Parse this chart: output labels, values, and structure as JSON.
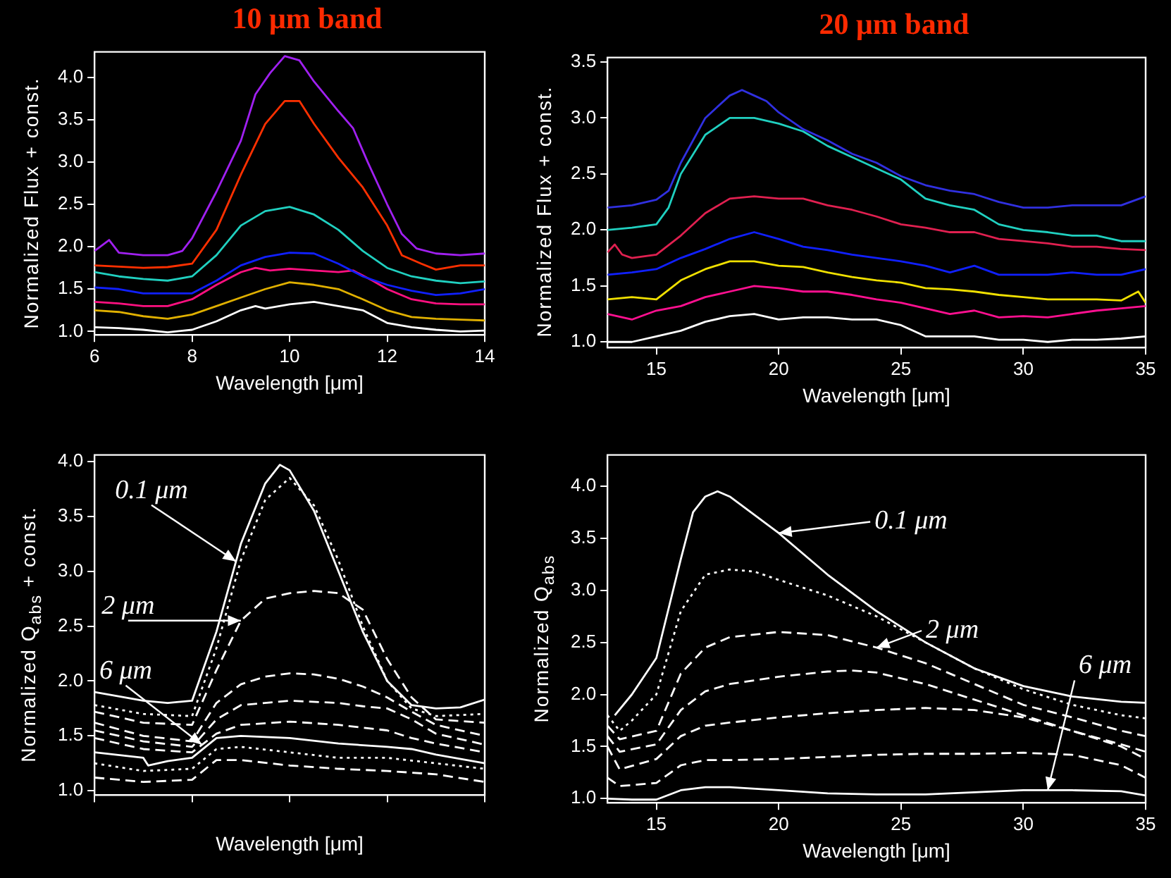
{
  "chart_data": [
    {
      "type": "line",
      "title": "10 μm band",
      "xlabel": "Wavelength [μm]",
      "ylabel": "Normalized Flux + const.",
      "xlim": [
        6,
        14
      ],
      "ylim": [
        0.96,
        4.3
      ],
      "xticks": [
        6,
        8,
        10,
        12,
        14
      ],
      "yticks": [
        {
          "value": 1,
          "label": "1.0"
        },
        1.5,
        {
          "value": 2,
          "label": "2.0"
        },
        2.5,
        {
          "value": 3,
          "label": "3.0"
        },
        3.5,
        {
          "value": 4,
          "label": "4.0"
        }
      ],
      "grid": false,
      "legend": false,
      "marker": "none",
      "series": [
        {
          "color": "#a020f0",
          "x": [
            6,
            6.3,
            6.5,
            7,
            7.5,
            7.8,
            8,
            8.5,
            9,
            9.3,
            9.6,
            9.9,
            10.2,
            10.5,
            11,
            11.3,
            11.6,
            12,
            12.3,
            12.6,
            13,
            13.5,
            14
          ],
          "values": [
            1.95,
            2.08,
            1.93,
            1.9,
            1.9,
            1.95,
            2.1,
            2.65,
            3.25,
            3.8,
            4.05,
            4.25,
            4.2,
            3.95,
            3.6,
            3.4,
            3.0,
            2.5,
            2.15,
            1.98,
            1.92,
            1.9,
            1.92
          ]
        },
        {
          "color": "#ff3000",
          "x": [
            6,
            7,
            7.5,
            8,
            8.5,
            9,
            9.5,
            9.9,
            10.2,
            10.5,
            11,
            11.5,
            12,
            12.3,
            12.7,
            13,
            13.5,
            14
          ],
          "values": [
            1.78,
            1.75,
            1.76,
            1.8,
            2.2,
            2.85,
            3.45,
            3.72,
            3.72,
            3.45,
            3.05,
            2.7,
            2.25,
            1.9,
            1.8,
            1.73,
            1.78,
            1.78
          ]
        },
        {
          "color": "#20d0c0",
          "x": [
            6,
            6.5,
            7,
            7.5,
            8,
            8.5,
            9,
            9.5,
            10,
            10.5,
            11,
            11.5,
            12,
            12.5,
            13,
            13.5,
            14
          ],
          "values": [
            1.7,
            1.65,
            1.62,
            1.6,
            1.65,
            1.9,
            2.25,
            2.42,
            2.47,
            2.38,
            2.2,
            1.95,
            1.75,
            1.65,
            1.6,
            1.57,
            1.59
          ]
        },
        {
          "color": "#1020ff",
          "x": [
            6,
            6.5,
            7,
            7.5,
            8,
            8.5,
            9,
            9.5,
            10,
            10.5,
            11,
            11.5,
            12,
            12.5,
            13,
            13.5,
            14
          ],
          "values": [
            1.52,
            1.5,
            1.45,
            1.45,
            1.45,
            1.6,
            1.78,
            1.88,
            1.93,
            1.92,
            1.8,
            1.65,
            1.55,
            1.48,
            1.43,
            1.45,
            1.5
          ]
        },
        {
          "color": "#ff1080",
          "x": [
            6,
            6.5,
            7,
            7.5,
            8,
            8.5,
            9,
            9.3,
            9.6,
            10,
            10.5,
            11,
            11.3,
            11.7,
            12,
            12.5,
            13,
            13.5,
            14
          ],
          "values": [
            1.35,
            1.33,
            1.3,
            1.3,
            1.38,
            1.55,
            1.7,
            1.75,
            1.72,
            1.74,
            1.72,
            1.7,
            1.72,
            1.6,
            1.5,
            1.38,
            1.33,
            1.32,
            1.32
          ]
        },
        {
          "color": "#e0b000",
          "x": [
            6,
            6.5,
            7,
            7.5,
            8,
            8.5,
            9,
            9.5,
            10,
            10.5,
            11,
            11.5,
            12,
            12.5,
            13,
            13.5,
            14
          ],
          "values": [
            1.25,
            1.23,
            1.18,
            1.15,
            1.2,
            1.3,
            1.4,
            1.5,
            1.58,
            1.55,
            1.5,
            1.38,
            1.25,
            1.17,
            1.15,
            1.14,
            1.13
          ]
        },
        {
          "color": "#ffffff",
          "x": [
            6,
            6.5,
            7,
            7.5,
            8,
            8.5,
            9,
            9.3,
            9.5,
            10,
            10.5,
            11,
            11.5,
            12,
            12.5,
            13,
            13.5,
            14
          ],
          "values": [
            1.05,
            1.04,
            1.02,
            0.99,
            1.02,
            1.12,
            1.25,
            1.3,
            1.27,
            1.32,
            1.35,
            1.3,
            1.25,
            1.1,
            1.05,
            1.02,
            1.0,
            1.01
          ]
        }
      ]
    },
    {
      "type": "line",
      "title": "20 μm band",
      "xlabel": "Wavelength [μm]",
      "ylabel": "Normalized Flux + const.",
      "xlim": [
        13,
        35
      ],
      "ylim": [
        0.95,
        3.54
      ],
      "xticks": [
        15,
        20,
        25,
        30,
        35
      ],
      "yticks": [
        {
          "value": 1,
          "label": "1.0"
        },
        1.5,
        {
          "value": 2,
          "label": "2.0"
        },
        2.5,
        {
          "value": 3,
          "label": "3.0"
        },
        3.5
      ],
      "grid": false,
      "legend": false,
      "marker": "none",
      "series": [
        {
          "color": "#3030e0",
          "x": [
            13,
            14,
            15,
            15.5,
            16,
            17,
            18,
            18.5,
            19,
            19.5,
            20,
            21,
            22,
            23,
            24,
            25,
            26,
            27,
            28,
            29,
            30,
            31,
            32,
            33,
            34,
            35
          ],
          "values": [
            2.2,
            2.22,
            2.27,
            2.35,
            2.6,
            3.0,
            3.2,
            3.25,
            3.2,
            3.15,
            3.05,
            2.9,
            2.8,
            2.68,
            2.6,
            2.48,
            2.4,
            2.35,
            2.32,
            2.25,
            2.2,
            2.2,
            2.22,
            2.22,
            2.22,
            2.3
          ]
        },
        {
          "color": "#20d0c0",
          "x": [
            13,
            14,
            15,
            15.5,
            16,
            17,
            18,
            19,
            20,
            21,
            22,
            23,
            24,
            25,
            26,
            27,
            28,
            29,
            30,
            31,
            32,
            33,
            34,
            35
          ],
          "values": [
            2.0,
            2.02,
            2.05,
            2.2,
            2.5,
            2.85,
            3.0,
            3.0,
            2.95,
            2.88,
            2.75,
            2.65,
            2.55,
            2.45,
            2.28,
            2.22,
            2.18,
            2.05,
            2.0,
            1.98,
            1.95,
            1.95,
            1.9,
            1.9
          ]
        },
        {
          "color": "#e02050",
          "x": [
            13,
            13.3,
            13.6,
            14,
            15,
            16,
            17,
            18,
            19,
            20,
            21,
            22,
            23,
            24,
            25,
            26,
            27,
            28,
            29,
            30,
            31,
            32,
            33,
            34,
            35
          ],
          "values": [
            1.8,
            1.87,
            1.78,
            1.75,
            1.78,
            1.95,
            2.15,
            2.28,
            2.3,
            2.28,
            2.28,
            2.22,
            2.18,
            2.12,
            2.05,
            2.02,
            1.98,
            1.98,
            1.92,
            1.9,
            1.88,
            1.85,
            1.85,
            1.83,
            1.82
          ]
        },
        {
          "color": "#1020ff",
          "x": [
            13,
            14,
            15,
            16,
            17,
            18,
            19,
            20,
            21,
            22,
            23,
            24,
            25,
            26,
            27,
            28,
            29,
            30,
            31,
            32,
            33,
            34,
            35
          ],
          "values": [
            1.6,
            1.62,
            1.65,
            1.75,
            1.83,
            1.92,
            1.98,
            1.92,
            1.85,
            1.82,
            1.78,
            1.75,
            1.72,
            1.68,
            1.62,
            1.68,
            1.6,
            1.6,
            1.6,
            1.62,
            1.6,
            1.6,
            1.65
          ]
        },
        {
          "color": "#f0e000",
          "x": [
            13,
            14,
            15,
            16,
            17,
            18,
            19,
            20,
            21,
            22,
            23,
            24,
            25,
            26,
            27,
            28,
            29,
            30,
            31,
            32,
            33,
            34,
            34.7,
            35
          ],
          "values": [
            1.38,
            1.4,
            1.38,
            1.55,
            1.65,
            1.72,
            1.72,
            1.68,
            1.67,
            1.62,
            1.58,
            1.55,
            1.53,
            1.48,
            1.47,
            1.45,
            1.42,
            1.4,
            1.38,
            1.38,
            1.38,
            1.37,
            1.45,
            1.35
          ]
        },
        {
          "color": "#ff1090",
          "x": [
            13,
            14,
            15,
            16,
            17,
            18,
            19,
            20,
            21,
            22,
            23,
            24,
            25,
            26,
            27,
            28,
            29,
            30,
            31,
            32,
            33,
            34,
            35
          ],
          "values": [
            1.25,
            1.2,
            1.28,
            1.32,
            1.4,
            1.45,
            1.5,
            1.48,
            1.45,
            1.45,
            1.42,
            1.38,
            1.35,
            1.3,
            1.25,
            1.28,
            1.22,
            1.23,
            1.22,
            1.25,
            1.28,
            1.3,
            1.32
          ]
        },
        {
          "color": "#ffffff",
          "x": [
            13,
            14,
            15,
            16,
            17,
            18,
            19,
            20,
            21,
            22,
            23,
            24,
            25,
            26,
            27,
            28,
            29,
            30,
            31,
            32,
            33,
            34,
            35
          ],
          "values": [
            1.0,
            1.0,
            1.05,
            1.1,
            1.18,
            1.23,
            1.25,
            1.2,
            1.22,
            1.22,
            1.2,
            1.2,
            1.15,
            1.05,
            1.05,
            1.05,
            1.02,
            1.02,
            1.0,
            1.02,
            1.02,
            1.03,
            1.05
          ]
        }
      ]
    },
    {
      "type": "line",
      "xlabel": "Wavelength [μm]",
      "ylabel": "Normalized Q$_{abs}$ + const.",
      "xlim": [
        6,
        14
      ],
      "ylim": [
        0.96,
        4.06
      ],
      "xticks": [
        6,
        8,
        10,
        12,
        14
      ],
      "yticks": [
        {
          "value": 1,
          "label": "1.0"
        },
        1.5,
        {
          "value": 2,
          "label": "2.0"
        },
        2.5,
        {
          "value": 3,
          "label": "3.0"
        },
        3.5,
        {
          "value": 4,
          "label": "4.0"
        }
      ],
      "tick_labels": "y",
      "grid": false,
      "legend": false,
      "marker": "none",
      "annotations": [
        {
          "text": "0.1 μm",
          "x": 8.9,
          "y": 3.09
        },
        {
          "text": "2 μm",
          "x": 9,
          "y": 2.55
        },
        {
          "text": "6 μm",
          "x": 8.2,
          "y": 1.42
        }
      ],
      "series": [
        {
          "color": "#ffffff",
          "line_style": "solid",
          "x": [
            6,
            7,
            7.5,
            8,
            8.5,
            9,
            9.5,
            9.8,
            10,
            10.5,
            11,
            11.5,
            12,
            12.5,
            13,
            13.5,
            14
          ],
          "values": [
            1.9,
            1.82,
            1.8,
            1.82,
            2.45,
            3.25,
            3.8,
            3.97,
            3.92,
            3.55,
            3.0,
            2.45,
            2.0,
            1.78,
            1.75,
            1.76,
            1.83
          ]
        },
        {
          "color": "#ffffff",
          "line_style": "dotted",
          "x": [
            6,
            7,
            8,
            8.5,
            9,
            9.5,
            10,
            10.5,
            11,
            11.5,
            12,
            12.5,
            13,
            14
          ],
          "values": [
            1.78,
            1.7,
            1.68,
            2.3,
            3.1,
            3.65,
            3.85,
            3.6,
            3.1,
            2.5,
            2.0,
            1.75,
            1.68,
            1.7
          ]
        },
        {
          "color": "#ffffff",
          "line_style": "dashed",
          "x": [
            6,
            7,
            8,
            8.5,
            9,
            9.5,
            10,
            10.5,
            11,
            11.5,
            12,
            12.5,
            13,
            14
          ],
          "values": [
            1.72,
            1.62,
            1.6,
            2.1,
            2.55,
            2.75,
            2.8,
            2.82,
            2.8,
            2.65,
            2.2,
            1.85,
            1.65,
            1.62
          ]
        },
        {
          "color": "#ffffff",
          "line_style": "dashed",
          "x": [
            6,
            7,
            8,
            8.5,
            9,
            9.5,
            10,
            10.5,
            11,
            11.5,
            12,
            12.5,
            13,
            14
          ],
          "values": [
            1.62,
            1.5,
            1.45,
            1.8,
            1.97,
            2.04,
            2.07,
            2.06,
            2.02,
            1.95,
            1.85,
            1.72,
            1.6,
            1.5
          ]
        },
        {
          "color": "#ffffff",
          "line_style": "dashed",
          "x": [
            6,
            7,
            8,
            8.5,
            9,
            10,
            11,
            11.5,
            12,
            12.5,
            13,
            14
          ],
          "values": [
            1.55,
            1.45,
            1.4,
            1.65,
            1.78,
            1.82,
            1.8,
            1.77,
            1.75,
            1.65,
            1.52,
            1.42
          ]
        },
        {
          "color": "#ffffff",
          "line_style": "dashed",
          "x": [
            6,
            7,
            8,
            8.5,
            9,
            10,
            11,
            12,
            12.5,
            13,
            14
          ],
          "values": [
            1.48,
            1.38,
            1.35,
            1.52,
            1.6,
            1.63,
            1.6,
            1.55,
            1.48,
            1.43,
            1.35
          ]
        },
        {
          "color": "#ffffff",
          "line_style": "solid",
          "x": [
            6,
            7,
            7.1,
            7.5,
            8,
            8.5,
            9,
            10,
            11,
            12,
            12.5,
            13,
            14
          ],
          "values": [
            1.35,
            1.3,
            1.23,
            1.27,
            1.3,
            1.48,
            1.5,
            1.48,
            1.43,
            1.4,
            1.38,
            1.33,
            1.25
          ]
        },
        {
          "color": "#ffffff",
          "line_style": "dotted",
          "x": [
            6,
            7,
            8,
            8.5,
            9,
            10,
            11,
            12,
            13,
            14
          ],
          "values": [
            1.25,
            1.18,
            1.2,
            1.38,
            1.4,
            1.35,
            1.3,
            1.3,
            1.25,
            1.2
          ]
        },
        {
          "color": "#ffffff",
          "line_style": "dashed",
          "x": [
            6,
            7,
            8,
            8.5,
            9,
            10,
            11,
            12,
            13,
            14
          ],
          "values": [
            1.12,
            1.08,
            1.1,
            1.28,
            1.28,
            1.23,
            1.2,
            1.18,
            1.15,
            1.08
          ]
        }
      ]
    },
    {
      "type": "line",
      "xlabel": "Wavelength [μm]",
      "ylabel": "Normalized Q$_{abs}$",
      "xlim": [
        13,
        35
      ],
      "ylim": [
        0.96,
        4.3
      ],
      "xticks": [
        15,
        20,
        25,
        30,
        35
      ],
      "yticks": [
        {
          "value": 1,
          "label": "1.0"
        },
        1.5,
        {
          "value": 2,
          "label": "2.0"
        },
        2.5,
        {
          "value": 3,
          "label": "3.0"
        },
        3.5,
        {
          "value": 4,
          "label": "4.0"
        }
      ],
      "grid": false,
      "legend": false,
      "marker": "none",
      "annotations": [
        {
          "text": "0.1 μm",
          "x": 20,
          "y": 3.55
        },
        {
          "text": "2 μm",
          "x": 24,
          "y": 2.45
        },
        {
          "text": "6 μm",
          "x": 31,
          "y": 1.08
        }
      ],
      "series": [
        {
          "color": "#ffffff",
          "line_style": "solid",
          "x": [
            13.3,
            14,
            15,
            16,
            16.5,
            17,
            17.5,
            18,
            20,
            22,
            24,
            26,
            28,
            30,
            32,
            34,
            35
          ],
          "values": [
            1.8,
            2.0,
            2.35,
            3.3,
            3.75,
            3.9,
            3.95,
            3.9,
            3.55,
            3.15,
            2.8,
            2.5,
            2.25,
            2.08,
            1.98,
            1.93,
            1.92
          ]
        },
        {
          "color": "#ffffff",
          "line_style": "dotted",
          "x": [
            13,
            13.5,
            14,
            15,
            16,
            17,
            18,
            19,
            20,
            22,
            24,
            26,
            28,
            30,
            32,
            34,
            35
          ],
          "values": [
            1.8,
            1.65,
            1.75,
            2.0,
            2.8,
            3.15,
            3.2,
            3.18,
            3.1,
            2.95,
            2.75,
            2.5,
            2.25,
            2.05,
            1.9,
            1.8,
            1.77
          ]
        },
        {
          "color": "#ffffff",
          "line_style": "dashed",
          "x": [
            13,
            13.5,
            15,
            16,
            17,
            18,
            20,
            22,
            24,
            26,
            28,
            30,
            32,
            34,
            35
          ],
          "values": [
            1.7,
            1.57,
            1.65,
            2.2,
            2.45,
            2.55,
            2.6,
            2.57,
            2.45,
            2.3,
            2.1,
            1.9,
            1.78,
            1.65,
            1.6
          ]
        },
        {
          "color": "#ffffff",
          "line_style": "dashed",
          "x": [
            13,
            13.5,
            15,
            16,
            17,
            18,
            20,
            22,
            23,
            24,
            26,
            28,
            30,
            32,
            34,
            35
          ],
          "values": [
            1.6,
            1.45,
            1.52,
            1.85,
            2.03,
            2.1,
            2.17,
            2.22,
            2.23,
            2.21,
            2.1,
            1.95,
            1.8,
            1.65,
            1.52,
            1.45
          ]
        },
        {
          "color": "#ffffff",
          "line_style": "dashed",
          "x": [
            13,
            13.5,
            15,
            16,
            17,
            18,
            20,
            22,
            24,
            26,
            28,
            30,
            32,
            34,
            35
          ],
          "values": [
            1.5,
            1.28,
            1.38,
            1.6,
            1.7,
            1.73,
            1.78,
            1.82,
            1.85,
            1.87,
            1.85,
            1.78,
            1.65,
            1.5,
            1.38
          ]
        },
        {
          "color": "#ffffff",
          "line_style": "dashed",
          "x": [
            13,
            13.5,
            15,
            16,
            17,
            18,
            20,
            22,
            24,
            26,
            28,
            30,
            32,
            34,
            35
          ],
          "values": [
            1.2,
            1.12,
            1.15,
            1.32,
            1.37,
            1.37,
            1.38,
            1.4,
            1.42,
            1.43,
            1.43,
            1.44,
            1.42,
            1.32,
            1.2
          ]
        },
        {
          "color": "#ffffff",
          "line_style": "solid",
          "x": [
            13,
            14,
            15,
            16,
            17,
            18,
            20,
            22,
            24,
            26,
            28,
            30,
            32,
            34,
            35
          ],
          "values": [
            1.0,
            0.99,
            0.99,
            1.08,
            1.11,
            1.11,
            1.08,
            1.05,
            1.04,
            1.04,
            1.06,
            1.08,
            1.08,
            1.07,
            1.03
          ]
        }
      ]
    }
  ]
}
